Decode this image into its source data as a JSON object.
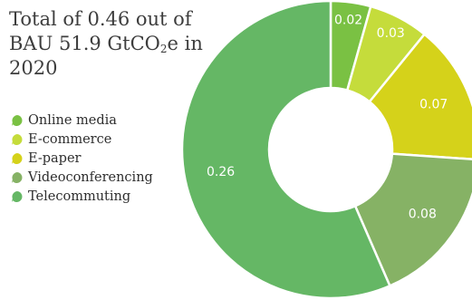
{
  "title_parts": {
    "line1": "Total of 0.46 out of",
    "line2_prefix": "BAU 51.9 GtCO",
    "line2_sub": "2",
    "line2_suffix": "e in",
    "line3": "2020"
  },
  "chart_data": {
    "type": "pie",
    "variant": "donut",
    "title": "Total of 0.46 out of BAU 51.9 GtCO2e in 2020",
    "legend_placement": "left",
    "slices": [
      {
        "name": "Online media",
        "value": 0.02,
        "label": "0.02",
        "color": "#7ac143"
      },
      {
        "name": "E-commerce",
        "value": 0.03,
        "label": "0.03",
        "color": "#c5dc3b"
      },
      {
        "name": "E-paper",
        "value": 0.07,
        "label": "0.07",
        "color": "#d5d21a"
      },
      {
        "name": "Videoconferencing",
        "value": 0.08,
        "label": "0.08",
        "color": "#86b265"
      },
      {
        "name": "Telecommuting",
        "value": 0.26,
        "label": "0.26",
        "color": "#65b765"
      }
    ]
  }
}
